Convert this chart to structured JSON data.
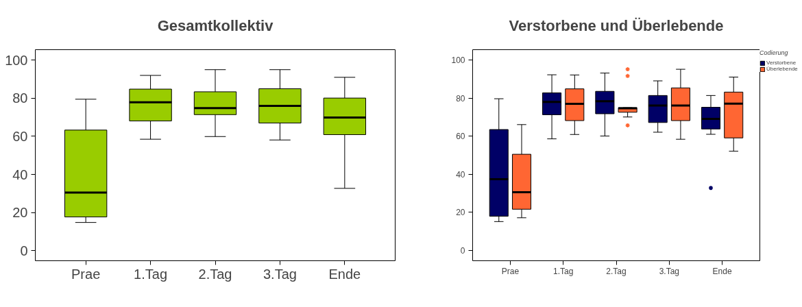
{
  "chart_data": [
    {
      "type": "box",
      "title": "Gesamtkollektiv",
      "categories": [
        "Prae",
        "1.Tag",
        "2.Tag",
        "3.Tag",
        "Ende"
      ],
      "ylim": [
        -5.3,
        105.5
      ],
      "yticks": [
        0,
        20,
        40,
        60,
        80,
        100
      ],
      "grid": false,
      "legend": false,
      "series": [
        {
          "color": "#99cc00",
          "boxes": [
            {
              "low": 14.8,
              "q1": 17.7,
              "median": 30.5,
              "q3": 63.3,
              "high": 79.5
            },
            {
              "low": 58.5,
              "q1": 68.1,
              "median": 77.9,
              "q3": 84.8,
              "high": 92
            },
            {
              "low": 59.9,
              "q1": 71.4,
              "median": 74.8,
              "q3": 83.4,
              "high": 95
            },
            {
              "low": 58.1,
              "q1": 67,
              "median": 76,
              "q3": 85,
              "high": 95
            },
            {
              "low": 32.7,
              "q1": 60.9,
              "median": 69.9,
              "q3": 80.1,
              "high": 91
            }
          ]
        }
      ]
    },
    {
      "type": "box",
      "title": "Verstorbene und Überlebende",
      "categories": [
        "Prae",
        "1.Tag",
        "2.Tag",
        "3.Tag",
        "Ende"
      ],
      "ylim": [
        -5.5,
        105.5
      ],
      "yticks": [
        0,
        20,
        40,
        60,
        80,
        100
      ],
      "grid": false,
      "legend": "right",
      "legend_title": "Codierung",
      "series": [
        {
          "name": "Verstorbene",
          "color": "#000066",
          "boxes": [
            {
              "low": 15.1,
              "q1": 17.9,
              "median": 37.4,
              "q3": 63.5,
              "high": 79.7
            },
            {
              "low": 58.6,
              "q1": 71.3,
              "median": 78,
              "q3": 82.8,
              "high": 92.3
            },
            {
              "low": 60.1,
              "q1": 71.8,
              "median": 78.4,
              "q3": 83.6,
              "high": 93.2
            },
            {
              "low": 62.1,
              "q1": 67.2,
              "median": 76.1,
              "q3": 81.4,
              "high": 89.1
            },
            {
              "low": 61,
              "q1": 63.8,
              "median": 69.1,
              "q3": 75.2,
              "high": 81.4,
              "outliers": [
                32.8
              ]
            }
          ]
        },
        {
          "name": "Überlebende",
          "color": "#ff6633",
          "boxes": [
            {
              "low": 17.1,
              "q1": 21.6,
              "median": 30.5,
              "q3": 50.5,
              "high": 66.1
            },
            {
              "low": 60.9,
              "q1": 68.2,
              "median": 77,
              "q3": 84.9,
              "high": 92.2
            },
            {
              "low": 70.1,
              "q1": 72.6,
              "median": 74.7,
              "q3": 75,
              "high": 75,
              "outliers": [
                95.2,
                91.7,
                65.7
              ]
            },
            {
              "low": 58.4,
              "q1": 68.2,
              "median": 76.1,
              "q3": 85.4,
              "high": 95.2
            },
            {
              "low": 52.1,
              "q1": 59.1,
              "median": 77.1,
              "q3": 83.2,
              "high": 91.1
            }
          ]
        }
      ]
    }
  ]
}
